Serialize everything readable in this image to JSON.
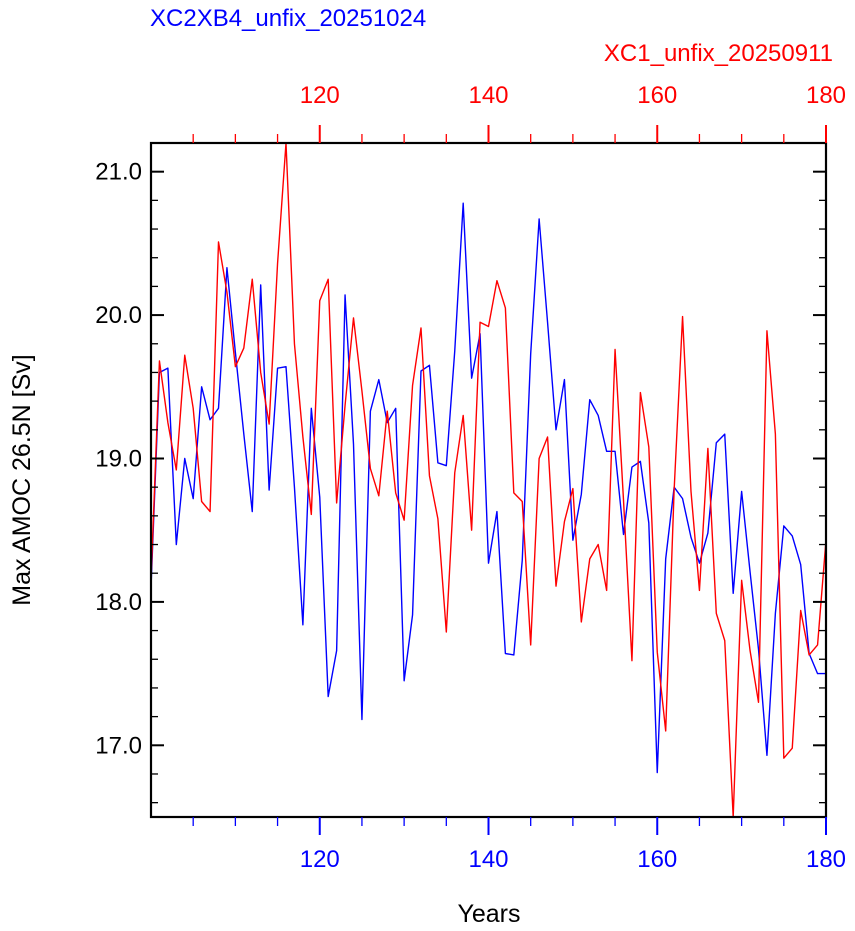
{
  "chart_data": {
    "type": "line",
    "title": "",
    "xlabel": "Years",
    "ylabel": "Max AMOC 26.5N [Sv]",
    "grid": false,
    "x_bottom": {
      "lim": [
        100,
        180
      ],
      "ticks": [
        120,
        140,
        160,
        180
      ],
      "color": "#0000ff"
    },
    "x_top": {
      "lim": [
        100,
        180
      ],
      "ticks": [
        120,
        140,
        160,
        180
      ],
      "color": "#ff0000"
    },
    "y": {
      "lim": [
        16.5,
        21.2
      ],
      "ticks": [
        17.0,
        18.0,
        19.0,
        20.0,
        21.0
      ],
      "tick_labels": [
        "17.0",
        "18.0",
        "19.0",
        "20.0",
        "21.0"
      ]
    },
    "series": [
      {
        "name": "XC2XB4_unfix_20251024",
        "color": "#0000ff",
        "axis": "bottom",
        "x": [
          100,
          101,
          102,
          103,
          104,
          105,
          106,
          107,
          108,
          109,
          110,
          111,
          112,
          113,
          114,
          115,
          116,
          117,
          118,
          119,
          120,
          121,
          122,
          123,
          124,
          125,
          126,
          127,
          128,
          129,
          130,
          131,
          132,
          133,
          134,
          135,
          136,
          137,
          138,
          139,
          140,
          141,
          142,
          143,
          144,
          145,
          146,
          147,
          148,
          149,
          150,
          151,
          152,
          153,
          154,
          155,
          156,
          157,
          158,
          159,
          160,
          161,
          162,
          163,
          164,
          165,
          166,
          167,
          168,
          169,
          170,
          171,
          172,
          173,
          174,
          175,
          176,
          177,
          178,
          179,
          180
        ],
        "values": [
          18.1,
          19.6,
          19.63,
          18.4,
          19.0,
          18.72,
          19.5,
          19.27,
          19.35,
          20.33,
          19.74,
          19.17,
          18.63,
          20.21,
          18.78,
          19.63,
          19.64,
          18.8,
          17.84,
          19.35,
          18.73,
          17.34,
          17.66,
          20.14,
          19.1,
          17.18,
          19.33,
          19.55,
          19.25,
          19.35,
          17.45,
          17.91,
          19.61,
          19.65,
          18.97,
          18.95,
          19.75,
          20.78,
          19.56,
          19.87,
          18.27,
          18.63,
          17.64,
          17.63,
          18.29,
          19.73,
          20.67,
          19.95,
          19.2,
          19.55,
          18.43,
          18.75,
          19.41,
          19.3,
          19.05,
          19.05,
          18.47,
          18.94,
          18.98,
          18.55,
          16.81,
          18.3,
          18.8,
          18.72,
          18.45,
          18.27,
          18.48,
          19.11,
          19.17,
          18.06,
          18.77,
          18.21,
          17.67,
          16.93,
          17.92,
          18.53,
          18.46,
          18.26,
          17.64,
          17.5,
          17.5
        ]
      },
      {
        "name": "XC1_unfix_20250911",
        "color": "#ff0000",
        "axis": "top",
        "x": [
          100,
          101,
          102,
          103,
          104,
          105,
          106,
          107,
          108,
          109,
          110,
          111,
          112,
          113,
          114,
          115,
          116,
          117,
          118,
          119,
          120,
          121,
          122,
          123,
          124,
          125,
          126,
          127,
          128,
          129,
          130,
          131,
          132,
          133,
          134,
          135,
          136,
          137,
          138,
          139,
          140,
          141,
          142,
          143,
          144,
          145,
          146,
          147,
          148,
          149,
          150,
          151,
          152,
          153,
          154,
          155,
          156,
          157,
          158,
          159,
          160,
          161,
          162,
          163,
          164,
          165,
          166,
          167,
          168,
          169,
          170,
          171,
          172,
          173,
          174,
          175,
          176,
          177,
          178,
          179,
          180
        ],
        "values": [
          18.15,
          19.68,
          19.25,
          18.92,
          19.72,
          19.35,
          18.7,
          18.63,
          20.51,
          20.16,
          19.64,
          19.77,
          20.25,
          19.6,
          19.24,
          20.36,
          21.2,
          19.8,
          19.15,
          18.61,
          20.1,
          20.25,
          18.69,
          19.37,
          19.98,
          19.47,
          18.93,
          18.74,
          19.33,
          18.76,
          18.57,
          19.51,
          19.91,
          18.88,
          18.58,
          17.79,
          18.9,
          19.3,
          18.5,
          19.95,
          19.92,
          20.24,
          20.05,
          18.76,
          18.7,
          17.7,
          19.0,
          19.15,
          18.11,
          18.56,
          18.79,
          17.86,
          18.3,
          18.4,
          18.08,
          19.76,
          18.71,
          17.59,
          19.46,
          19.08,
          17.65,
          17.1,
          18.78,
          19.99,
          18.77,
          18.08,
          19.07,
          17.92,
          17.73,
          16.5,
          18.15,
          17.66,
          17.3,
          19.89,
          19.17,
          16.91,
          16.98,
          17.94,
          17.63,
          17.7,
          18.43
        ]
      }
    ]
  }
}
